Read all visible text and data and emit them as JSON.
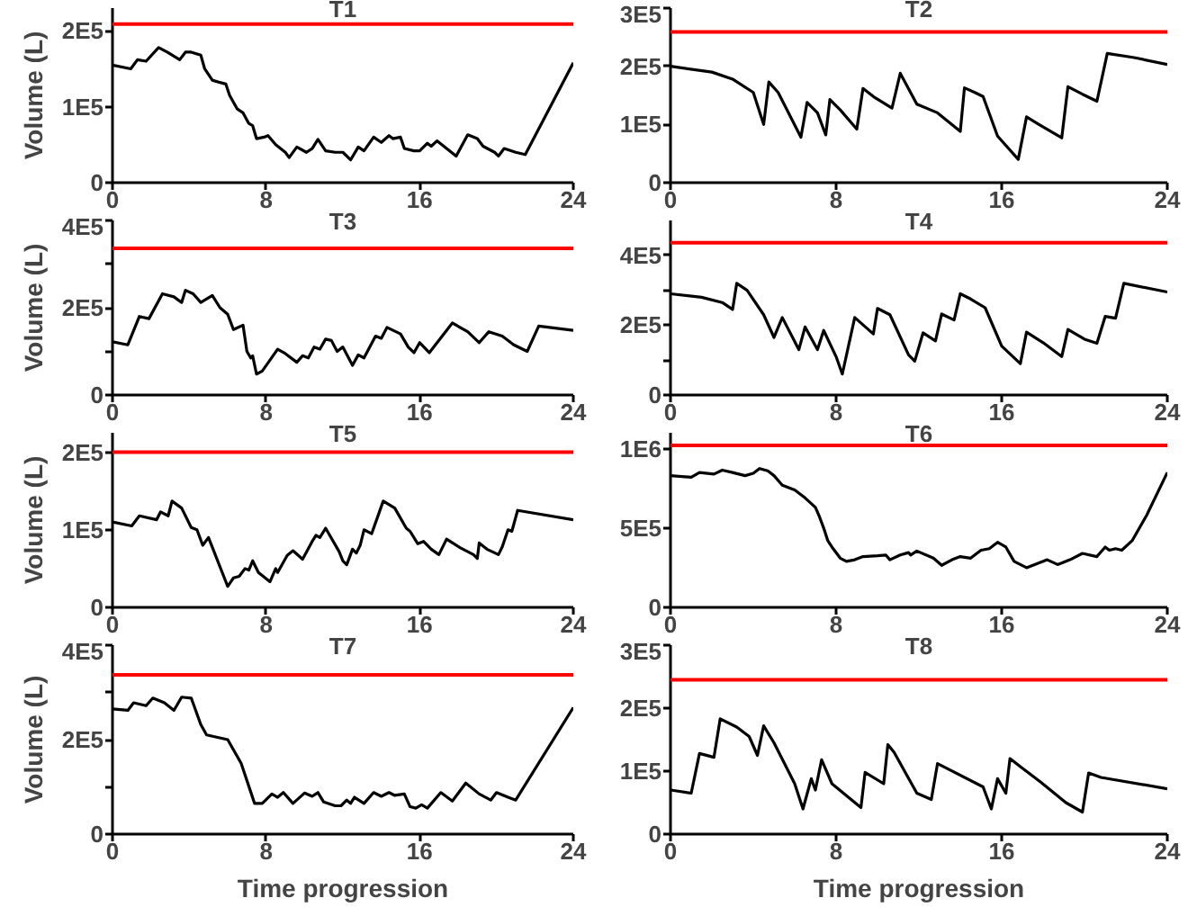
{
  "chart_data": [
    {
      "type": "line",
      "title": "T1",
      "ylabel": "Volume (L)",
      "color": "#000000",
      "xlim": [
        0,
        24
      ],
      "xticks": [
        0,
        8,
        16,
        24
      ],
      "ylim": [
        0,
        230000
      ],
      "yticks": [
        0,
        {
          "value": 100000,
          "label": "1E5"
        },
        {
          "value": 200000,
          "label": "2E5"
        }
      ],
      "grid": false,
      "ref_lines": [
        {
          "axis": "y",
          "value": 209000,
          "color": "#ff0000"
        }
      ],
      "x": [
        0,
        0.95,
        1.3,
        1.75,
        2.4,
        2.85,
        3.5,
        3.8,
        4.1,
        4.6,
        4.8,
        5.2,
        5.6,
        5.9,
        6.1,
        6.5,
        6.8,
        7.1,
        7.3,
        7.5,
        7.9,
        8.1,
        8.5,
        9,
        9.2,
        9.6,
        10.1,
        10.4,
        10.7,
        11.1,
        11.6,
        12,
        12.4,
        12.8,
        13.1,
        13.6,
        14,
        14.4,
        14.6,
        15,
        15.2,
        15.7,
        16,
        16.4,
        16.6,
        16.9,
        17.4,
        17.9,
        18.5,
        19,
        19.3,
        19.9,
        20.1,
        20.4,
        21,
        21.5,
        24
      ],
      "values": [
        155000,
        150000,
        162000,
        160000,
        178000,
        172000,
        162000,
        172000,
        172000,
        168000,
        150000,
        135000,
        132000,
        130000,
        115000,
        97000,
        92000,
        78000,
        75000,
        58000,
        60000,
        62000,
        50000,
        40000,
        33000,
        47000,
        40000,
        45000,
        57000,
        42000,
        40000,
        40000,
        30000,
        47000,
        42000,
        60000,
        53000,
        62000,
        58000,
        60000,
        45000,
        42000,
        42000,
        52000,
        48000,
        55000,
        45000,
        35000,
        63000,
        58000,
        48000,
        40000,
        35000,
        45000,
        40000,
        37000,
        158000
      ]
    },
    {
      "type": "line",
      "title": "T2",
      "color": "#000000",
      "xlim": [
        0,
        24
      ],
      "xticks": [
        0,
        8,
        16,
        24
      ],
      "ylim": [
        0,
        300000
      ],
      "yticks": [
        0,
        {
          "value": 100000,
          "label": "1E5"
        },
        {
          "value": 200000,
          "label": "2E5"
        },
        {
          "value": 300000,
          "label": "3E5"
        }
      ],
      "grid": false,
      "ref_lines": [
        {
          "axis": "y",
          "value": 259000,
          "color": "#ff0000"
        }
      ],
      "x": [
        0,
        2,
        3,
        4,
        4.5,
        4.75,
        5.2,
        6.3,
        6.6,
        7.1,
        7.5,
        7.7,
        8.2,
        9,
        9.3,
        9.8,
        10.7,
        11.1,
        11.9,
        12.9,
        14,
        14.2,
        14.7,
        15.1,
        15.8,
        16.8,
        17.2,
        17.8,
        18.9,
        19.2,
        19.9,
        20.6,
        21.1,
        22.4,
        24
      ],
      "values": [
        200000,
        190000,
        178000,
        155000,
        100000,
        173000,
        155000,
        78000,
        138000,
        120000,
        82000,
        143000,
        125000,
        92000,
        162000,
        148000,
        128000,
        188000,
        135000,
        120000,
        88000,
        163000,
        155000,
        148000,
        80000,
        40000,
        113000,
        100000,
        77000,
        165000,
        152000,
        140000,
        222000,
        215000,
        203000
      ]
    },
    {
      "type": "line",
      "title": "T3",
      "ylabel": "Volume (L)",
      "color": "#000000",
      "xlim": [
        0,
        24
      ],
      "xticks": [
        0,
        8,
        16,
        24
      ],
      "ylim": [
        0,
        400000
      ],
      "yticks": [
        0,
        {
          "value": 100000,
          "label": null
        },
        {
          "value": 200000,
          "label": "2E5"
        },
        {
          "value": 300000,
          "label": null
        },
        {
          "value": 400000,
          "label": "4E5"
        }
      ],
      "grid": false,
      "ref_lines": [
        {
          "axis": "y",
          "value": 336000,
          "color": "#ff0000"
        }
      ],
      "x": [
        0,
        0.8,
        1.4,
        1.9,
        2.6,
        3.2,
        3.6,
        3.8,
        4.2,
        4.6,
        5.2,
        5.6,
        6,
        6.3,
        6.8,
        7,
        7.2,
        7.3,
        7.5,
        7.8,
        8.6,
        9,
        9.6,
        9.9,
        10.2,
        10.5,
        10.8,
        11.1,
        11.4,
        11.7,
        12,
        12.5,
        12.8,
        13.1,
        13.7,
        14,
        14.3,
        15,
        15.4,
        15.7,
        16,
        16.5,
        17.7,
        18.5,
        19.1,
        19.6,
        20.3,
        20.9,
        21.6,
        22.2,
        24
      ],
      "values": [
        122000,
        115000,
        180000,
        175000,
        232000,
        225000,
        212000,
        240000,
        232000,
        212000,
        228000,
        200000,
        185000,
        150000,
        160000,
        100000,
        85000,
        90000,
        48000,
        55000,
        105000,
        95000,
        75000,
        90000,
        85000,
        110000,
        105000,
        128000,
        125000,
        100000,
        110000,
        68000,
        92000,
        85000,
        135000,
        130000,
        155000,
        140000,
        110000,
        97000,
        120000,
        97000,
        165000,
        145000,
        120000,
        145000,
        135000,
        115000,
        100000,
        158000,
        148000
      ]
    },
    {
      "type": "line",
      "title": "T4",
      "color": "#000000",
      "xlim": [
        0,
        24
      ],
      "xticks": [
        0,
        8,
        16,
        24
      ],
      "ylim": [
        0,
        500000
      ],
      "yticks": [
        0,
        {
          "value": 100000,
          "label": null
        },
        {
          "value": 200000,
          "label": "2E5"
        },
        {
          "value": 300000,
          "label": null
        },
        {
          "value": 400000,
          "label": "4E5"
        }
      ],
      "grid": false,
      "ref_lines": [
        {
          "axis": "y",
          "value": 436000,
          "color": "#ff0000"
        }
      ],
      "x": [
        0,
        1.5,
        2.5,
        3,
        3.2,
        3.7,
        4.5,
        5,
        5.4,
        6.2,
        6.5,
        7.1,
        7.4,
        8,
        8.3,
        8.9,
        9.8,
        10,
        10.6,
        11.5,
        11.8,
        12.2,
        12.8,
        13.1,
        13.7,
        14,
        14.5,
        15.2,
        16,
        16.9,
        17.2,
        18,
        18.9,
        19.2,
        20,
        20.6,
        21,
        21.5,
        21.9,
        24
      ],
      "values": [
        290000,
        280000,
        265000,
        245000,
        320000,
        300000,
        230000,
        165000,
        222000,
        130000,
        195000,
        130000,
        185000,
        110000,
        60000,
        222000,
        175000,
        248000,
        230000,
        115000,
        97000,
        178000,
        155000,
        232000,
        215000,
        290000,
        275000,
        250000,
        140000,
        90000,
        180000,
        150000,
        110000,
        188000,
        160000,
        148000,
        225000,
        220000,
        320000,
        295000
      ]
    },
    {
      "type": "line",
      "title": "T5",
      "ylabel": "Volume (L)",
      "color": "#000000",
      "xlim": [
        0,
        24
      ],
      "xticks": [
        0,
        8,
        16,
        24
      ],
      "ylim": [
        0,
        225000
      ],
      "yticks": [
        0,
        {
          "value": 100000,
          "label": "1E5"
        },
        {
          "value": 200000,
          "label": "2E5"
        }
      ],
      "grid": false,
      "ref_lines": [
        {
          "axis": "y",
          "value": 200000,
          "color": "#ff0000"
        }
      ],
      "x": [
        0,
        1,
        1.4,
        2.3,
        2.5,
        2.9,
        3.1,
        3.6,
        4.1,
        4.4,
        4.7,
        5,
        6,
        6.3,
        6.6,
        6.9,
        7.1,
        7.3,
        7.6,
        8.2,
        8.5,
        8.6,
        9.1,
        9.4,
        9.9,
        10.4,
        10.6,
        10.8,
        11.1,
        11.8,
        12,
        12.2,
        12.5,
        12.7,
        12.9,
        13.1,
        13.5,
        14.1,
        14.7,
        15.3,
        15.5,
        15.9,
        16.2,
        16.6,
        17,
        17.4,
        18.1,
        18.8,
        19,
        19.1,
        19.5,
        20.1,
        20.3,
        20.6,
        20.8,
        21.1,
        24
      ],
      "values": [
        110000,
        105000,
        118000,
        113000,
        123000,
        118000,
        137000,
        128000,
        103000,
        100000,
        80000,
        90000,
        27000,
        38000,
        40000,
        50000,
        48000,
        60000,
        45000,
        33000,
        50000,
        45000,
        67000,
        73000,
        62000,
        85000,
        93000,
        90000,
        102000,
        72000,
        60000,
        55000,
        75000,
        70000,
        80000,
        100000,
        95000,
        137000,
        128000,
        102000,
        98000,
        82000,
        85000,
        75000,
        68000,
        88000,
        77000,
        68000,
        63000,
        83000,
        75000,
        68000,
        78000,
        100000,
        98000,
        125000,
        113000
      ]
    },
    {
      "type": "line",
      "title": "T6",
      "color": "#000000",
      "xlim": [
        0,
        24
      ],
      "xticks": [
        0,
        8,
        16,
        24
      ],
      "ylim": [
        0,
        1100000
      ],
      "yticks": [
        0,
        {
          "value": 500000,
          "label": "5E5"
        },
        {
          "value": 1000000,
          "label": "1E6"
        }
      ],
      "grid": false,
      "ref_lines": [
        {
          "axis": "y",
          "value": 1020000,
          "color": "#ff0000"
        }
      ],
      "x": [
        0,
        1,
        1.4,
        2.1,
        2.5,
        3,
        3.6,
        4,
        4.3,
        4.7,
        5,
        5.4,
        6,
        6.5,
        7,
        7.2,
        7.4,
        7.6,
        7.8,
        8.2,
        8.5,
        8.9,
        9.3,
        10,
        10.4,
        10.6,
        11.1,
        11.5,
        11.6,
        11.9,
        12.7,
        13.1,
        13.6,
        14,
        14.5,
        15,
        15.4,
        15.8,
        16.2,
        16.6,
        17.2,
        17.7,
        18.2,
        18.7,
        19.3,
        19.9,
        20.6,
        21,
        21.2,
        21.5,
        21.8,
        22.3,
        23,
        24
      ],
      "values": [
        830000,
        820000,
        850000,
        840000,
        865000,
        850000,
        830000,
        845000,
        875000,
        860000,
        830000,
        770000,
        740000,
        690000,
        630000,
        570000,
        500000,
        420000,
        380000,
        310000,
        290000,
        300000,
        320000,
        325000,
        330000,
        300000,
        330000,
        345000,
        330000,
        355000,
        310000,
        265000,
        300000,
        320000,
        310000,
        360000,
        370000,
        410000,
        380000,
        290000,
        250000,
        275000,
        300000,
        270000,
        300000,
        340000,
        320000,
        380000,
        360000,
        370000,
        360000,
        420000,
        580000,
        850000
      ]
    },
    {
      "type": "line",
      "title": "T7",
      "ylabel": "Volume (L)",
      "xlabel": "Time progression",
      "color": "#000000",
      "xlim": [
        0,
        24
      ],
      "xticks": [
        0,
        8,
        16,
        24
      ],
      "ylim": [
        0,
        400000
      ],
      "yticks": [
        0,
        {
          "value": 100000,
          "label": null
        },
        {
          "value": 200000,
          "label": "2E5"
        },
        {
          "value": 300000,
          "label": null
        },
        {
          "value": 400000,
          "label": "4E5"
        }
      ],
      "grid": false,
      "ref_lines": [
        {
          "axis": "y",
          "value": 337000,
          "color": "#ff0000"
        }
      ],
      "x": [
        0,
        0.8,
        1.1,
        1.75,
        2.1,
        2.7,
        3.2,
        3.6,
        4.1,
        4.6,
        4.9,
        6,
        6.7,
        7.4,
        7.8,
        8.3,
        8.6,
        8.9,
        9.4,
        10,
        10.4,
        10.7,
        11,
        11.6,
        11.9,
        12.2,
        12.4,
        12.6,
        13.1,
        13.6,
        14,
        14.4,
        14.7,
        15.2,
        15.5,
        15.8,
        16.1,
        16.4,
        17.1,
        17.7,
        18.4,
        19.1,
        19.7,
        20,
        20.6,
        21,
        24
      ],
      "values": [
        265000,
        262000,
        278000,
        272000,
        288000,
        278000,
        262000,
        290000,
        288000,
        232000,
        210000,
        200000,
        150000,
        65000,
        65000,
        85000,
        78000,
        88000,
        65000,
        87000,
        80000,
        88000,
        68000,
        60000,
        60000,
        72000,
        65000,
        78000,
        65000,
        88000,
        80000,
        88000,
        82000,
        85000,
        58000,
        55000,
        62000,
        55000,
        88000,
        70000,
        108000,
        85000,
        72000,
        88000,
        78000,
        72000,
        268000
      ]
    },
    {
      "type": "line",
      "title": "T8",
      "xlabel": "Time progression",
      "color": "#000000",
      "xlim": [
        0,
        24
      ],
      "xticks": [
        0,
        8,
        16,
        24
      ],
      "ylim": [
        0,
        300000
      ],
      "yticks": [
        0,
        {
          "value": 100000,
          "label": "1E5"
        },
        {
          "value": 200000,
          "label": "2E5"
        },
        {
          "value": 300000,
          "label": "3E5"
        }
      ],
      "grid": false,
      "ref_lines": [
        {
          "axis": "y",
          "value": 245000,
          "color": "#ff0000"
        }
      ],
      "x": [
        0,
        1,
        1.4,
        2.1,
        2.4,
        3.2,
        3.8,
        4.2,
        4.5,
        5,
        6,
        6.4,
        6.8,
        7,
        7.3,
        7.8,
        9.2,
        9.4,
        10.3,
        10.5,
        10.8,
        11.9,
        12.6,
        12.9,
        15.1,
        15.5,
        15.8,
        16.2,
        16.4,
        16.9,
        17.9,
        19.1,
        19.9,
        20.2,
        20.8,
        24
      ],
      "values": [
        70000,
        65000,
        128000,
        122000,
        183000,
        170000,
        155000,
        125000,
        172000,
        145000,
        80000,
        40000,
        88000,
        70000,
        118000,
        80000,
        42000,
        98000,
        80000,
        142000,
        130000,
        65000,
        55000,
        112000,
        75000,
        40000,
        88000,
        65000,
        120000,
        107000,
        82000,
        50000,
        35000,
        97000,
        90000,
        72000
      ]
    }
  ]
}
